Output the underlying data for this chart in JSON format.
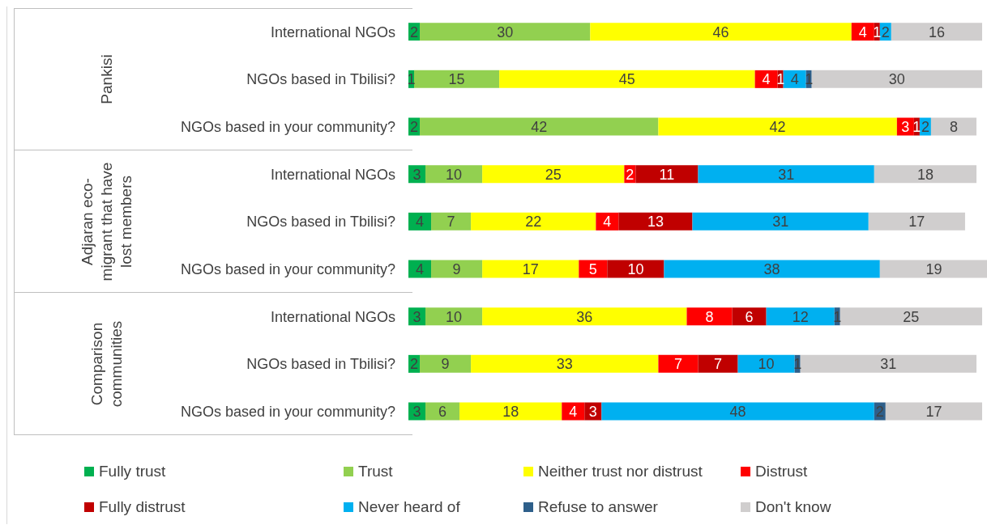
{
  "chart_data": {
    "type": "bar",
    "orientation": "horizontal",
    "stacked": true,
    "data_labels": true,
    "legend": "bottom",
    "categories": [
      "International NGOs",
      "NGOs based in Tbilisi?",
      "NGOs based in your community?",
      "International NGOs",
      "NGOs based in Tbilisi?",
      "NGOs based in your community?",
      "International NGOs",
      "NGOs based in Tbilisi?",
      "NGOs based in your community?"
    ],
    "annotations": [
      "Pankisi",
      "Adjaran eco-migrant that have lost members",
      "Comparison communities"
    ],
    "series": [
      {
        "name": "Fully trust",
        "color": "#00b050",
        "values": [
          2,
          1,
          2,
          3,
          4,
          4,
          3,
          2,
          3
        ]
      },
      {
        "name": "Trust",
        "color": "#92d050",
        "values": [
          30,
          15,
          42,
          10,
          7,
          9,
          10,
          9,
          6
        ]
      },
      {
        "name": "Neither trust nor distrust",
        "color": "#ffff00",
        "values": [
          46,
          45,
          42,
          25,
          22,
          17,
          36,
          33,
          18
        ]
      },
      {
        "name": "Distrust",
        "color": "#ff0000",
        "values": [
          4,
          4,
          3,
          2,
          4,
          5,
          8,
          7,
          4
        ]
      },
      {
        "name": "Fully distrust",
        "color": "#c00000",
        "values": [
          1,
          1,
          1,
          11,
          13,
          10,
          6,
          7,
          3
        ]
      },
      {
        "name": "Never heard of",
        "color": "#00b0f0",
        "values": [
          2,
          4,
          2,
          31,
          31,
          38,
          12,
          10,
          48
        ]
      },
      {
        "name": "Refuse to answer",
        "color": "#2e5f8a",
        "values": [
          null,
          1,
          null,
          null,
          null,
          null,
          1,
          1,
          2
        ]
      },
      {
        "name": "Don't know",
        "color": "#d0cece",
        "values": [
          16,
          30,
          8,
          18,
          17,
          19,
          25,
          31,
          17
        ]
      }
    ]
  }
}
